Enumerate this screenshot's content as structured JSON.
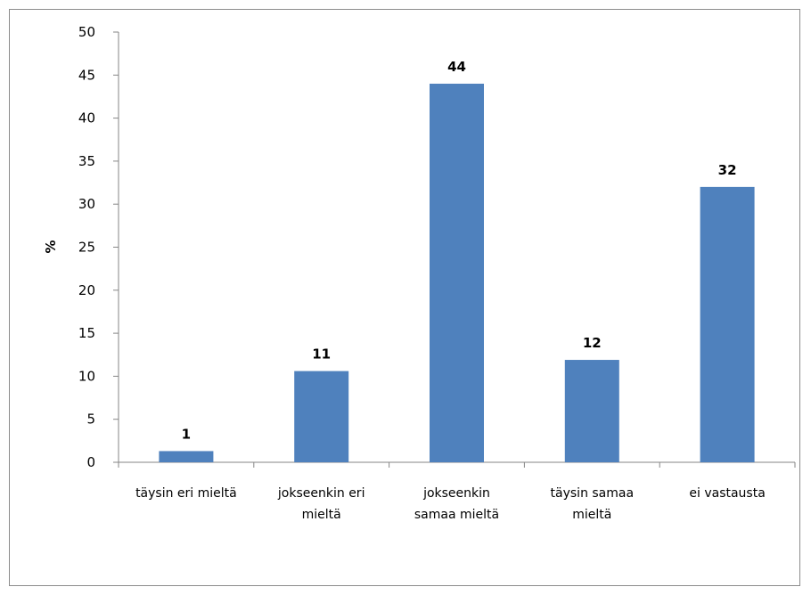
{
  "chart_data": {
    "type": "bar",
    "title": "",
    "xlabel": "",
    "ylabel": "%",
    "ylim": [
      0,
      50
    ],
    "yticks": [
      "0",
      "5",
      "10",
      "15",
      "20",
      "25",
      "30",
      "35",
      "40",
      "45",
      "50"
    ],
    "categories": [
      [
        "täysin eri mieltä"
      ],
      [
        "jokseenkin eri",
        "mieltä"
      ],
      [
        "jokseenkin",
        "samaa mieltä"
      ],
      [
        "täysin samaa",
        "mieltä"
      ],
      [
        "ei vastausta"
      ]
    ],
    "values": [
      1.3,
      10.6,
      44,
      11.9,
      32
    ],
    "data_labels": [
      "1",
      "11",
      "44",
      "12",
      "32"
    ],
    "bar_color": "#4f81bd",
    "grid": false,
    "legend": "none"
  }
}
